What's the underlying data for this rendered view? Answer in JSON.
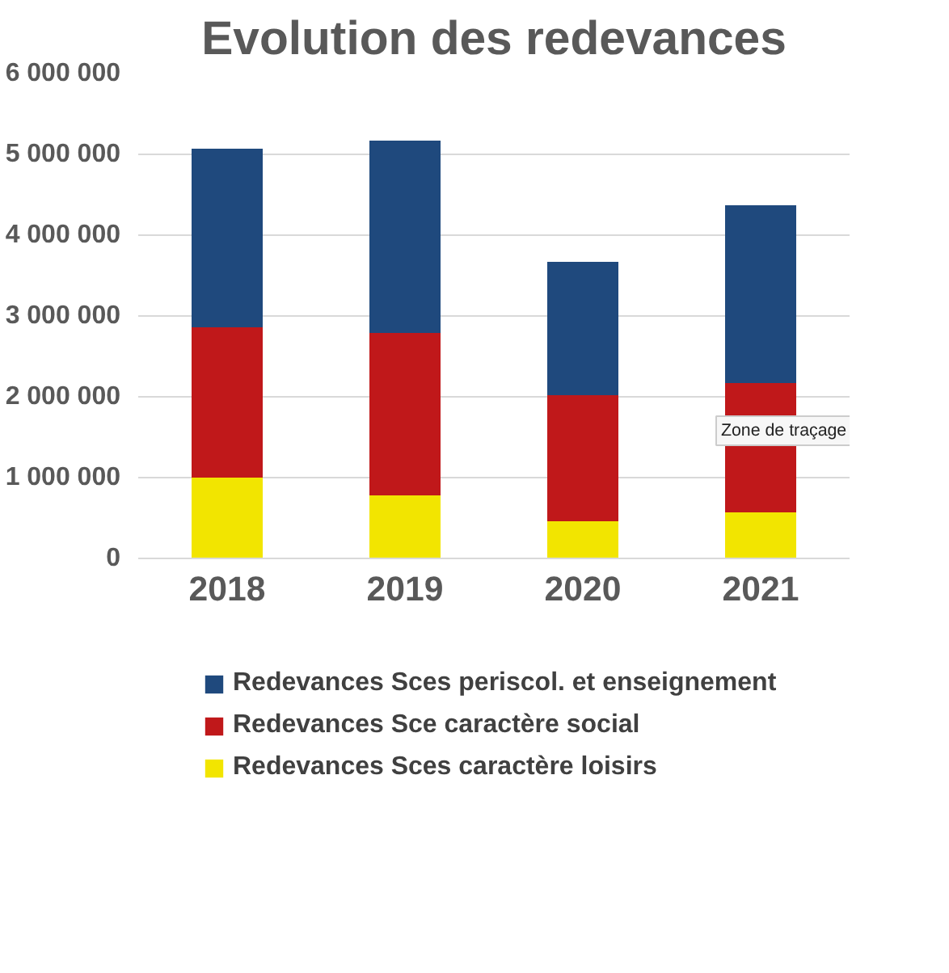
{
  "chart_data": {
    "type": "bar",
    "title": "Evolution des redevances",
    "stacked": true,
    "categories": [
      "2018",
      "2019",
      "2020",
      "2021"
    ],
    "series": [
      {
        "name": "Redevances Sces caractère loisirs",
        "color": "#f2e500",
        "values": [
          1000000,
          780000,
          460000,
          570000
        ]
      },
      {
        "name": "Redevances Sce caractère social",
        "color": "#c0181a",
        "values": [
          1860000,
          2010000,
          1560000,
          1600000
        ]
      },
      {
        "name": "Redevances Sces periscol. et enseignement",
        "color": "#1f497d",
        "values": [
          2210000,
          2380000,
          1650000,
          2200000
        ]
      }
    ],
    "ylim": [
      0,
      6000000
    ],
    "yticks": [
      {
        "value": 0,
        "label": "0"
      },
      {
        "value": 1000000,
        "label": "1 000 000"
      },
      {
        "value": 2000000,
        "label": "2 000 000"
      },
      {
        "value": 3000000,
        "label": "3 000 000"
      },
      {
        "value": 4000000,
        "label": "4 000 000"
      },
      {
        "value": 5000000,
        "label": "5 000 000"
      },
      {
        "value": 6000000,
        "label": "6 000 000"
      }
    ],
    "grid": "y",
    "legend": "bottom",
    "annotations": [
      "Zone de traçage"
    ]
  }
}
